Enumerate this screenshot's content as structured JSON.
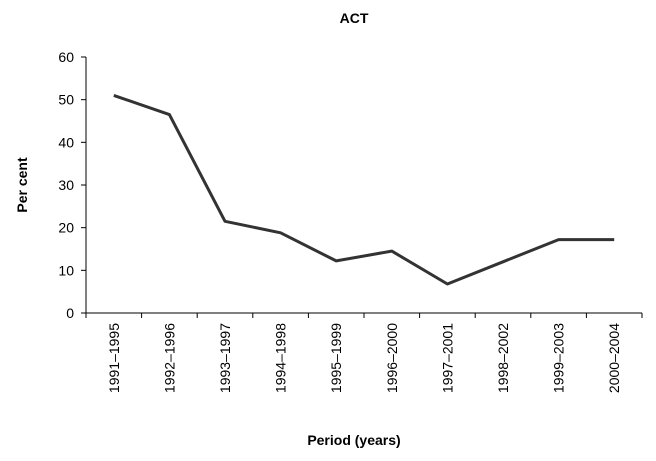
{
  "chart_data": {
    "type": "line",
    "title": "ACT",
    "x_label": "Period (years)",
    "y_label": "Per cent",
    "categories": [
      "1991–1995",
      "1992–1996",
      "1993–1997",
      "1994–1998",
      "1995–1999",
      "1996–2000",
      "1997–2001",
      "1998–2002",
      "1999–2003",
      "2000–2004"
    ],
    "values": [
      51,
      46.5,
      21.5,
      18.8,
      12.2,
      14.5,
      6.8,
      12.0,
      17.2,
      17.2
    ],
    "color": "#333333",
    "ylim": [
      0,
      60
    ],
    "yticks": [
      0,
      10,
      20,
      30,
      40,
      50,
      60
    ],
    "grid": false
  }
}
